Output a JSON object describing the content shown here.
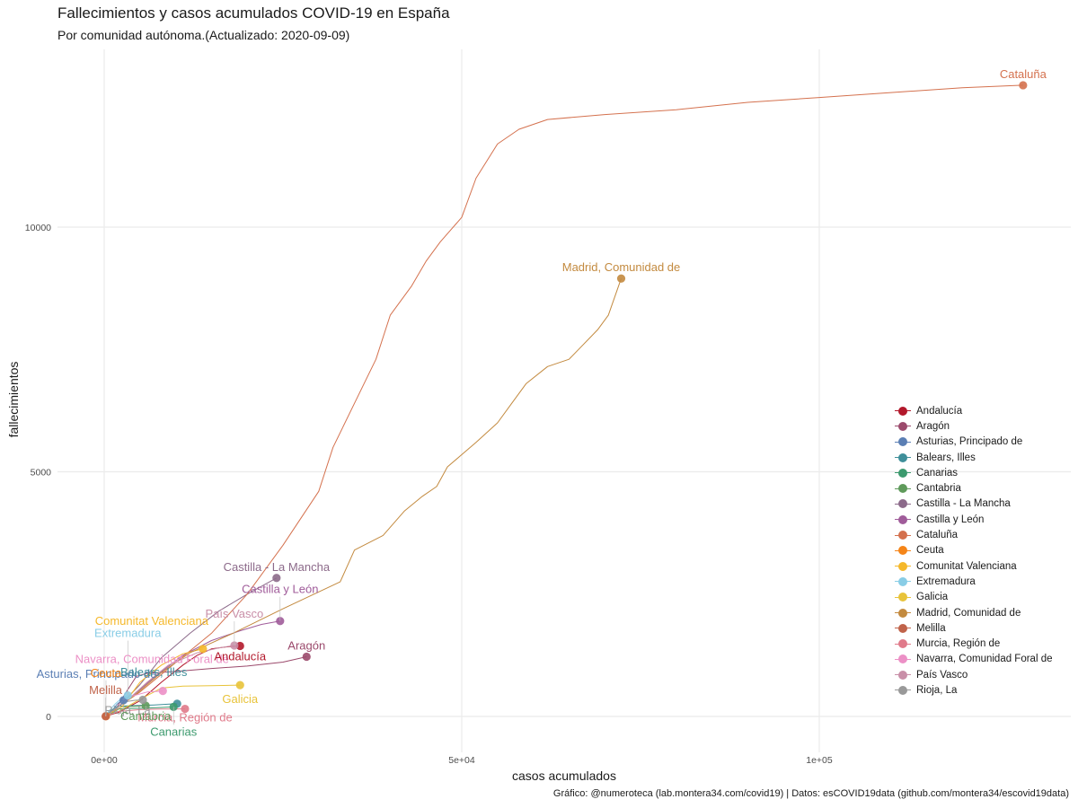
{
  "title": "Fallecimientos y casos acumulados COVID-19 en España",
  "subtitle": "Por comunidad autónoma.(Actualizado: 2020-09-09)",
  "caption": "Gráfico: @numeroteca (lab.montera34.com/covid19) | Datos: esCOVID19data (github.com/montera34/escovid19data)",
  "chart_data": {
    "type": "line",
    "xlabel": "casos acumulados",
    "ylabel": "fallecimientos",
    "xlim": [
      -2500,
      135000
    ],
    "ylim": [
      -600,
      14300
    ],
    "x_ticks": [
      0,
      50000,
      100000
    ],
    "x_tick_labels": [
      "0e+00",
      "5e+04",
      "1e+05"
    ],
    "y_ticks": [
      0,
      5000,
      10000
    ],
    "y_tick_labels": [
      "0",
      "5000",
      "10000"
    ],
    "grid": true,
    "legend_position": "right",
    "series": [
      {
        "name": "Andalucía",
        "color": "#b2182b",
        "final": [
          19000,
          1440
        ],
        "points": [
          [
            0,
            0
          ],
          [
            2000,
            80
          ],
          [
            5000,
            320
          ],
          [
            8000,
            700
          ],
          [
            11000,
            1050
          ],
          [
            13000,
            1250
          ],
          [
            15000,
            1380
          ],
          [
            17000,
            1420
          ],
          [
            19000,
            1440
          ]
        ]
      },
      {
        "name": "Aragón",
        "color": "#9b4a6c",
        "final": [
          28300,
          1220
        ],
        "points": [
          [
            0,
            0
          ],
          [
            1500,
            120
          ],
          [
            3000,
            480
          ],
          [
            4500,
            820
          ],
          [
            6000,
            880
          ],
          [
            10000,
            920
          ],
          [
            15000,
            980
          ],
          [
            20000,
            1030
          ],
          [
            25000,
            1110
          ],
          [
            28300,
            1220
          ]
        ]
      },
      {
        "name": "Asturias, Principado de",
        "color": "#5b7fb4",
        "final": [
          2700,
          330
        ],
        "points": [
          [
            0,
            0
          ],
          [
            1000,
            100
          ],
          [
            1800,
            250
          ],
          [
            2300,
            310
          ],
          [
            2700,
            330
          ]
        ]
      },
      {
        "name": "Balears, Illes",
        "color": "#3f8f9a",
        "final": [
          10200,
          260
        ],
        "points": [
          [
            0,
            0
          ],
          [
            1500,
            180
          ],
          [
            2000,
            210
          ],
          [
            4000,
            220
          ],
          [
            7000,
            235
          ],
          [
            10200,
            260
          ]
        ]
      },
      {
        "name": "Canarias",
        "color": "#3c9a6e",
        "final": [
          9700,
          195
        ],
        "points": [
          [
            0,
            0
          ],
          [
            2000,
            150
          ],
          [
            3000,
            160
          ],
          [
            6000,
            170
          ],
          [
            9700,
            195
          ]
        ]
      },
      {
        "name": "Cantabria",
        "color": "#5f9a5b",
        "final": [
          5800,
          220
        ],
        "points": [
          [
            0,
            0
          ],
          [
            1500,
            100
          ],
          [
            2500,
            200
          ],
          [
            4500,
            210
          ],
          [
            5800,
            220
          ]
        ]
      },
      {
        "name": "Castilla - La Mancha",
        "color": "#8c6a8a",
        "final": [
          24100,
          2830
        ],
        "points": [
          [
            0,
            0
          ],
          [
            2000,
            200
          ],
          [
            5000,
            650
          ],
          [
            8000,
            1200
          ],
          [
            12000,
            1700
          ],
          [
            16000,
            2150
          ],
          [
            20000,
            2500
          ],
          [
            24100,
            2830
          ]
        ]
      },
      {
        "name": "Castilla y León",
        "color": "#a05c9a",
        "final": [
          24600,
          1950
        ],
        "points": [
          [
            0,
            0
          ],
          [
            3000,
            300
          ],
          [
            7000,
            800
          ],
          [
            11000,
            1250
          ],
          [
            15000,
            1550
          ],
          [
            19000,
            1750
          ],
          [
            22000,
            1880
          ],
          [
            24600,
            1950
          ]
        ]
      },
      {
        "name": "Cataluña",
        "color": "#d4714e",
        "final": [
          128500,
          12900
        ],
        "points": [
          [
            0,
            0
          ],
          [
            5000,
            500
          ],
          [
            10000,
            1100
          ],
          [
            15000,
            1700
          ],
          [
            20000,
            2500
          ],
          [
            25000,
            3500
          ],
          [
            30000,
            4600
          ],
          [
            32000,
            5500
          ],
          [
            35000,
            6400
          ],
          [
            38000,
            7300
          ],
          [
            40000,
            8200
          ],
          [
            43000,
            8800
          ],
          [
            45000,
            9300
          ],
          [
            47000,
            9700
          ],
          [
            50000,
            10200
          ],
          [
            52000,
            11000
          ],
          [
            55000,
            11700
          ],
          [
            58000,
            12000
          ],
          [
            62000,
            12200
          ],
          [
            70000,
            12300
          ],
          [
            80000,
            12400
          ],
          [
            90000,
            12550
          ],
          [
            100000,
            12650
          ],
          [
            110000,
            12750
          ],
          [
            120000,
            12850
          ],
          [
            128500,
            12900
          ]
        ]
      },
      {
        "name": "Ceuta",
        "color": "#f58518",
        "final": [
          250,
          4
        ],
        "points": [
          [
            0,
            0
          ],
          [
            150,
            3
          ],
          [
            250,
            4
          ]
        ]
      },
      {
        "name": "Comunitat Valenciana",
        "color": "#f5b82a",
        "final": [
          13800,
          1380
        ],
        "points": [
          [
            0,
            0
          ],
          [
            2500,
            200
          ],
          [
            5000,
            700
          ],
          [
            8000,
            1050
          ],
          [
            11000,
            1280
          ],
          [
            13800,
            1380
          ]
        ]
      },
      {
        "name": "Extremadura",
        "color": "#89cde6",
        "final": [
          3300,
          430
        ],
        "points": [
          [
            0,
            0
          ],
          [
            1500,
            250
          ],
          [
            2500,
            380
          ],
          [
            3300,
            430
          ]
        ]
      },
      {
        "name": "Galicia",
        "color": "#e8c33a",
        "final": [
          19000,
          640
        ],
        "points": [
          [
            0,
            0
          ],
          [
            2000,
            100
          ],
          [
            5000,
            350
          ],
          [
            8000,
            580
          ],
          [
            11000,
            620
          ],
          [
            15000,
            630
          ],
          [
            19000,
            640
          ]
        ]
      },
      {
        "name": "Madrid, Comunidad de",
        "color": "#c38a3f",
        "final": [
          72300,
          8950
        ],
        "points": [
          [
            0,
            0
          ],
          [
            4000,
            400
          ],
          [
            8000,
            900
          ],
          [
            12000,
            1300
          ],
          [
            18000,
            1700
          ],
          [
            25000,
            2200
          ],
          [
            33000,
            2750
          ],
          [
            35000,
            3400
          ],
          [
            39000,
            3700
          ],
          [
            42000,
            4200
          ],
          [
            44500,
            4500
          ],
          [
            46500,
            4700
          ],
          [
            48000,
            5100
          ],
          [
            52000,
            5600
          ],
          [
            55000,
            6000
          ],
          [
            57000,
            6400
          ],
          [
            59000,
            6800
          ],
          [
            62000,
            7150
          ],
          [
            65000,
            7300
          ],
          [
            67000,
            7600
          ],
          [
            69000,
            7900
          ],
          [
            70500,
            8200
          ],
          [
            72300,
            8950
          ]
        ]
      },
      {
        "name": "Melilla",
        "color": "#c0634a",
        "final": [
          200,
          3
        ],
        "points": [
          [
            0,
            0
          ],
          [
            120,
            2
          ],
          [
            200,
            3
          ]
        ]
      },
      {
        "name": "Murcia, Región de",
        "color": "#e07a8a",
        "final": [
          11300,
          155
        ],
        "points": [
          [
            0,
            0
          ],
          [
            2000,
            100
          ],
          [
            5000,
            140
          ],
          [
            8000,
            150
          ],
          [
            11300,
            155
          ]
        ]
      },
      {
        "name": "Navarra, Comunidad Foral de",
        "color": "#ec90c6",
        "final": [
          8200,
          520
        ],
        "points": [
          [
            0,
            0
          ],
          [
            2000,
            200
          ],
          [
            4000,
            420
          ],
          [
            6000,
            500
          ],
          [
            8200,
            520
          ]
        ]
      },
      {
        "name": "País Vasco",
        "color": "#c98fa8",
        "final": [
          18200,
          1450
        ],
        "points": [
          [
            0,
            0
          ],
          [
            3000,
            300
          ],
          [
            6000,
            700
          ],
          [
            9000,
            1050
          ],
          [
            13000,
            1300
          ],
          [
            16000,
            1400
          ],
          [
            18200,
            1450
          ]
        ]
      },
      {
        "name": "Rioja, La",
        "color": "#999999",
        "final": [
          5400,
          340
        ],
        "points": [
          [
            0,
            0
          ],
          [
            1500,
            150
          ],
          [
            3000,
            300
          ],
          [
            4300,
            330
          ],
          [
            5400,
            340
          ]
        ]
      }
    ],
    "annotations": [
      {
        "text": "Cataluña",
        "series": "Cataluña"
      },
      {
        "text": "Madrid, Comunidad de",
        "series": "Madrid, Comunidad de"
      },
      {
        "text": "Castilla - La Mancha",
        "series": "Castilla - La Mancha"
      },
      {
        "text": "Castilla y León",
        "series": "Castilla y León"
      },
      {
        "text": "País Vasco",
        "series": "País Vasco"
      },
      {
        "text": "Extremadura",
        "series": "Extremadura"
      },
      {
        "text": "Comunitat Valenciana",
        "series": "Comunitat Valenciana"
      },
      {
        "text": "Navarra, Comunidad Foral de",
        "series": "Navarra, Comunidad Foral de"
      },
      {
        "text": "Aragón",
        "series": "Aragón"
      },
      {
        "text": "Asturias, Principado de",
        "series": "Asturias, Principado de"
      },
      {
        "text": "Andalucía",
        "series": "Andalucía"
      },
      {
        "text": "Ceuta",
        "series": "Ceuta"
      },
      {
        "text": "Balears, Illes",
        "series": "Balears, Illes"
      },
      {
        "text": "Melilla",
        "series": "Melilla"
      },
      {
        "text": "Galicia",
        "series": "Galicia"
      },
      {
        "text": "Rioja, La",
        "series": "Rioja, La"
      },
      {
        "text": "Murcia, Región de",
        "series": "Murcia, Región de"
      },
      {
        "text": "Cantabria",
        "series": "Cantabria"
      },
      {
        "text": "Canarias",
        "series": "Canarias"
      }
    ]
  }
}
